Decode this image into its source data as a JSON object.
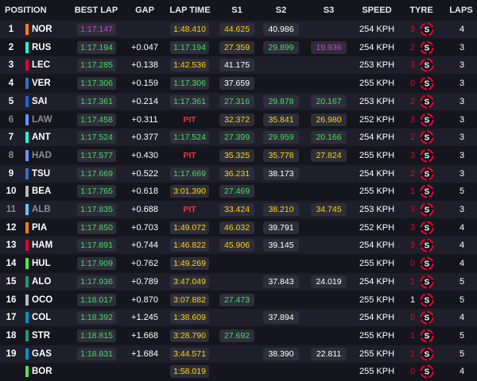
{
  "header": {
    "position": "POSITION",
    "best_lap": "BEST LAP",
    "gap": "GAP",
    "lap_time": "LAP TIME",
    "s1": "S1",
    "s2": "S2",
    "s3": "S3",
    "speed": "SPEED",
    "tyre": "TYRE",
    "laps": "LAPS"
  },
  "colors": {
    "green": "#3ee05a",
    "purple": "#d23cdc",
    "yellow": "#ffd400",
    "pit_red": "#ff2e2e",
    "soft_tyre": "#e8002d"
  },
  "tyre_icon": "soft-tyre-icon",
  "tyre_compound_letter": "S",
  "rows": [
    {
      "pos": "1",
      "name": "NOR",
      "team": "#ff8000",
      "out": false,
      "best_lap": "1:17.147",
      "best_color": "purple",
      "gap": "",
      "lap_time": "1:48.410",
      "lap_color": "yellow",
      "s1": "44.625",
      "s1_color": "yellow",
      "s2": "40.986",
      "s2_color": "white",
      "s3": "",
      "s3_color": "",
      "speed": "254 KPH",
      "tyre_num": "3",
      "tyre_red": true,
      "laps": "4"
    },
    {
      "pos": "2",
      "name": "RUS",
      "team": "#27f4d2",
      "out": false,
      "best_lap": "1:17.194",
      "best_color": "green",
      "gap": "+0.047",
      "lap_time": "1:17.194",
      "lap_color": "green",
      "s1": "27.359",
      "s1_color": "yellow",
      "s2": "29.899",
      "s2_color": "green",
      "s3": "19.936",
      "s3_color": "purple",
      "speed": "254 KPH",
      "tyre_num": "2",
      "tyre_red": true,
      "laps": "3"
    },
    {
      "pos": "3",
      "name": "LEC",
      "team": "#e8002d",
      "out": false,
      "best_lap": "1:17.285",
      "best_color": "green",
      "gap": "+0.138",
      "lap_time": "1:42.536",
      "lap_color": "yellow",
      "s1": "41.175",
      "s1_color": "white",
      "s2": "",
      "s2_color": "",
      "s3": "",
      "s3_color": "",
      "speed": "253 KPH",
      "tyre_num": "3",
      "tyre_red": true,
      "laps": "3"
    },
    {
      "pos": "4",
      "name": "VER",
      "team": "#3671c6",
      "out": false,
      "best_lap": "1:17.306",
      "best_color": "green",
      "gap": "+0.159",
      "lap_time": "1:17.306",
      "lap_color": "green",
      "s1": "37.659",
      "s1_color": "white",
      "s2": "",
      "s2_color": "",
      "s3": "",
      "s3_color": "",
      "speed": "255 KPH",
      "tyre_num": "0",
      "tyre_red": true,
      "laps": "3"
    },
    {
      "pos": "5",
      "name": "SAI",
      "team": "#1868db",
      "out": false,
      "best_lap": "1:17.361",
      "best_color": "green",
      "gap": "+0.214",
      "lap_time": "1:17.361",
      "lap_color": "green",
      "s1": "27.316",
      "s1_color": "green",
      "s2": "29.878",
      "s2_color": "green",
      "s3": "20.167",
      "s3_color": "green",
      "speed": "253 KPH",
      "tyre_num": "2",
      "tyre_red": true,
      "laps": "3"
    },
    {
      "pos": "6",
      "name": "LAW",
      "team": "#6692ff",
      "out": true,
      "best_lap": "1:17.458",
      "best_color": "green",
      "gap": "+0.311",
      "lap_time": "PIT",
      "lap_color": "pit",
      "s1": "32.372",
      "s1_color": "yellow",
      "s2": "35.841",
      "s2_color": "yellow",
      "s3": "26.980",
      "s3_color": "yellow",
      "speed": "252 KPH",
      "tyre_num": "3",
      "tyre_red": true,
      "laps": "3"
    },
    {
      "pos": "7",
      "name": "ANT",
      "team": "#27f4d2",
      "out": false,
      "best_lap": "1:17.524",
      "best_color": "green",
      "gap": "+0.377",
      "lap_time": "1:17.524",
      "lap_color": "green",
      "s1": "27.399",
      "s1_color": "green",
      "s2": "29.959",
      "s2_color": "green",
      "s3": "20.166",
      "s3_color": "green",
      "speed": "254 KPH",
      "tyre_num": "2",
      "tyre_red": true,
      "laps": "3"
    },
    {
      "pos": "8",
      "name": "HAD",
      "team": "#6692ff",
      "out": true,
      "best_lap": "1:17.577",
      "best_color": "green",
      "gap": "+0.430",
      "lap_time": "PIT",
      "lap_color": "pit",
      "s1": "35.325",
      "s1_color": "yellow",
      "s2": "35.778",
      "s2_color": "yellow",
      "s3": "27.824",
      "s3_color": "yellow",
      "speed": "255 KPH",
      "tyre_num": "3",
      "tyre_red": true,
      "laps": "3"
    },
    {
      "pos": "9",
      "name": "TSU",
      "team": "#3671c6",
      "out": false,
      "best_lap": "1:17.669",
      "best_color": "green",
      "gap": "+0.522",
      "lap_time": "1:17.669",
      "lap_color": "green",
      "s1": "36.231",
      "s1_color": "yellow",
      "s2": "38.173",
      "s2_color": "white",
      "s3": "",
      "s3_color": "",
      "speed": "254 KPH",
      "tyre_num": "2",
      "tyre_red": true,
      "laps": "3"
    },
    {
      "pos": "10",
      "name": "BEA",
      "team": "#b6babd",
      "out": false,
      "best_lap": "1:17.765",
      "best_color": "green",
      "gap": "+0.618",
      "lap_time": "3:01.390",
      "lap_color": "yellow",
      "s1": "27.469",
      "s1_color": "green",
      "s2": "",
      "s2_color": "",
      "s3": "",
      "s3_color": "",
      "speed": "255 KPH",
      "tyre_num": "1",
      "tyre_red": true,
      "laps": "5"
    },
    {
      "pos": "11",
      "name": "ALB",
      "team": "#64c4ff",
      "out": true,
      "best_lap": "1:17.835",
      "best_color": "green",
      "gap": "+0.688",
      "lap_time": "PIT",
      "lap_color": "pit",
      "s1": "33.424",
      "s1_color": "yellow",
      "s2": "38.210",
      "s2_color": "yellow",
      "s3": "34.745",
      "s3_color": "yellow",
      "speed": "253 KPH",
      "tyre_num": "3",
      "tyre_red": true,
      "laps": "3"
    },
    {
      "pos": "12",
      "name": "PIA",
      "team": "#ff8000",
      "out": false,
      "best_lap": "1:17.850",
      "best_color": "green",
      "gap": "+0.703",
      "lap_time": "1:49.072",
      "lap_color": "yellow",
      "s1": "46.032",
      "s1_color": "yellow",
      "s2": "39.791",
      "s2_color": "white",
      "s3": "",
      "s3_color": "",
      "speed": "252 KPH",
      "tyre_num": "3",
      "tyre_red": true,
      "laps": "4"
    },
    {
      "pos": "13",
      "name": "HAM",
      "team": "#e8002d",
      "out": false,
      "best_lap": "1:17.891",
      "best_color": "green",
      "gap": "+0.744",
      "lap_time": "1:46.822",
      "lap_color": "yellow",
      "s1": "45.906",
      "s1_color": "yellow",
      "s2": "39.145",
      "s2_color": "white",
      "s3": "",
      "s3_color": "",
      "speed": "254 KPH",
      "tyre_num": "3",
      "tyre_red": true,
      "laps": "4"
    },
    {
      "pos": "14",
      "name": "HUL",
      "team": "#52e252",
      "out": false,
      "best_lap": "1:17.909",
      "best_color": "green",
      "gap": "+0.762",
      "lap_time": "1:49.269",
      "lap_color": "yellow",
      "s1": "",
      "s1_color": "",
      "s2": "",
      "s2_color": "",
      "s3": "",
      "s3_color": "",
      "speed": "255 KPH",
      "tyre_num": "0",
      "tyre_red": true,
      "laps": "4"
    },
    {
      "pos": "15",
      "name": "ALO",
      "team": "#229971",
      "out": false,
      "best_lap": "1:17.936",
      "best_color": "green",
      "gap": "+0.789",
      "lap_time": "3:47.049",
      "lap_color": "yellow",
      "s1": "",
      "s1_color": "",
      "s2": "37.843",
      "s2_color": "white",
      "s3": "24.019",
      "s3_color": "white",
      "speed": "254 KPH",
      "tyre_num": "1",
      "tyre_red": true,
      "laps": "5"
    },
    {
      "pos": "16",
      "name": "OCO",
      "team": "#b6babd",
      "out": false,
      "best_lap": "1:18.017",
      "best_color": "green",
      "gap": "+0.870",
      "lap_time": "3:07.882",
      "lap_color": "yellow",
      "s1": "27.473",
      "s1_color": "green",
      "s2": "",
      "s2_color": "",
      "s3": "",
      "s3_color": "",
      "speed": "255 KPH",
      "tyre_num": "1",
      "tyre_red": false,
      "laps": "5"
    },
    {
      "pos": "17",
      "name": "COL",
      "team": "#0093cc",
      "out": false,
      "best_lap": "1:18.392",
      "best_color": "green",
      "gap": "+1.245",
      "lap_time": "1:38.609",
      "lap_color": "yellow",
      "s1": "",
      "s1_color": "",
      "s2": "37.894",
      "s2_color": "white",
      "s3": "",
      "s3_color": "",
      "speed": "254 KPH",
      "tyre_num": "0",
      "tyre_red": true,
      "laps": "4"
    },
    {
      "pos": "18",
      "name": "STR",
      "team": "#229971",
      "out": false,
      "best_lap": "1:18.815",
      "best_color": "green",
      "gap": "+1.668",
      "lap_time": "3:28.790",
      "lap_color": "yellow",
      "s1": "27.692",
      "s1_color": "green",
      "s2": "",
      "s2_color": "",
      "s3": "",
      "s3_color": "",
      "speed": "255 KPH",
      "tyre_num": "1",
      "tyre_red": true,
      "laps": "5"
    },
    {
      "pos": "19",
      "name": "GAS",
      "team": "#0093cc",
      "out": false,
      "best_lap": "1:18.831",
      "best_color": "green",
      "gap": "+1.684",
      "lap_time": "3:44.571",
      "lap_color": "yellow",
      "s1": "",
      "s1_color": "",
      "s2": "38.390",
      "s2_color": "white",
      "s3": "22.811",
      "s3_color": "white",
      "speed": "255 KPH",
      "tyre_num": "1",
      "tyre_red": true,
      "laps": "5"
    },
    {
      "pos": "",
      "name": "BOR",
      "team": "#52e252",
      "out": false,
      "best_lap": "",
      "best_color": "",
      "gap": "",
      "lap_time": "1:58.019",
      "lap_color": "yellow",
      "s1": "",
      "s1_color": "",
      "s2": "",
      "s2_color": "",
      "s3": "",
      "s3_color": "",
      "speed": "255 KPH",
      "tyre_num": "0",
      "tyre_red": true,
      "laps": "4"
    }
  ]
}
